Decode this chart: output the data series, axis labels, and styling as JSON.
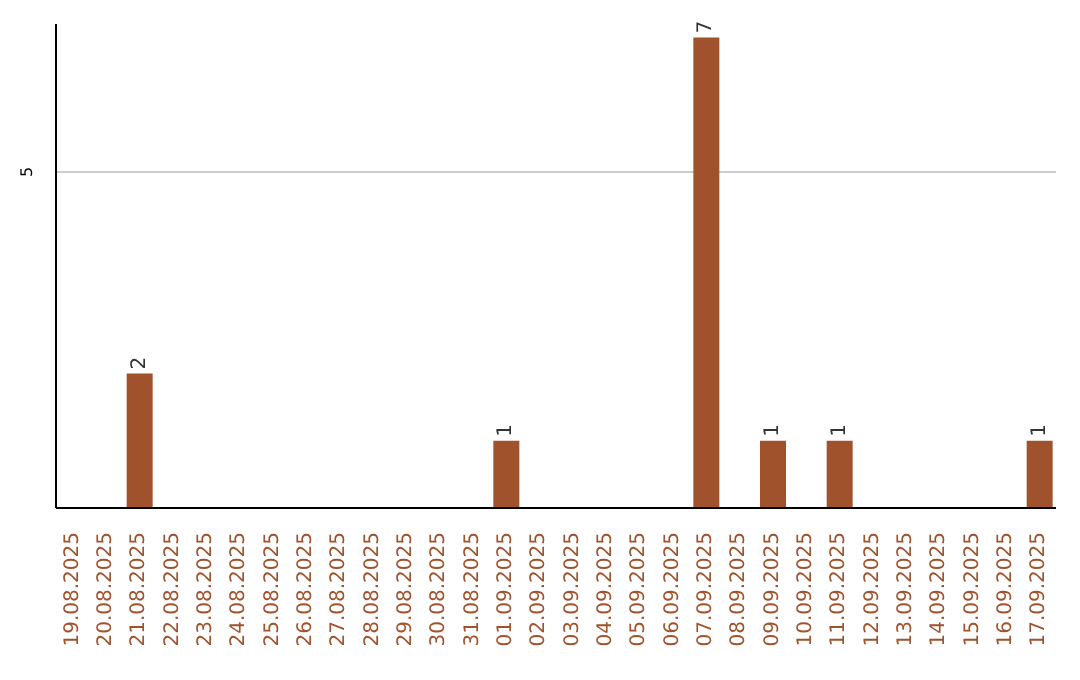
{
  "chart_data": {
    "type": "bar",
    "categories": [
      "19.08.2025",
      "20.08.2025",
      "21.08.2025",
      "22.08.2025",
      "23.08.2025",
      "24.08.2025",
      "25.08.2025",
      "26.08.2025",
      "27.08.2025",
      "28.08.2025",
      "29.08.2025",
      "30.08.2025",
      "31.08.2025",
      "01.09.2025",
      "02.09.2025",
      "03.09.2025",
      "04.09.2025",
      "05.09.2025",
      "06.09.2025",
      "07.09.2025",
      "08.09.2025",
      "09.09.2025",
      "10.09.2025",
      "11.09.2025",
      "12.09.2025",
      "13.09.2025",
      "14.09.2025",
      "15.09.2025",
      "16.09.2025",
      "17.09.2025"
    ],
    "values": [
      0,
      0,
      2,
      0,
      0,
      0,
      0,
      0,
      0,
      0,
      0,
      0,
      0,
      1,
      0,
      0,
      0,
      0,
      0,
      7,
      0,
      1,
      0,
      1,
      0,
      0,
      0,
      0,
      0,
      1
    ],
    "value_labels": [
      null,
      null,
      "2",
      null,
      null,
      null,
      null,
      null,
      null,
      null,
      null,
      null,
      null,
      "1",
      null,
      null,
      null,
      null,
      null,
      "7",
      null,
      "1",
      null,
      "1",
      null,
      null,
      null,
      null,
      null,
      "1"
    ],
    "color": "#a0522d",
    "ylim": [
      0,
      7.2
    ],
    "yticks": [
      5
    ],
    "grid": "y"
  }
}
